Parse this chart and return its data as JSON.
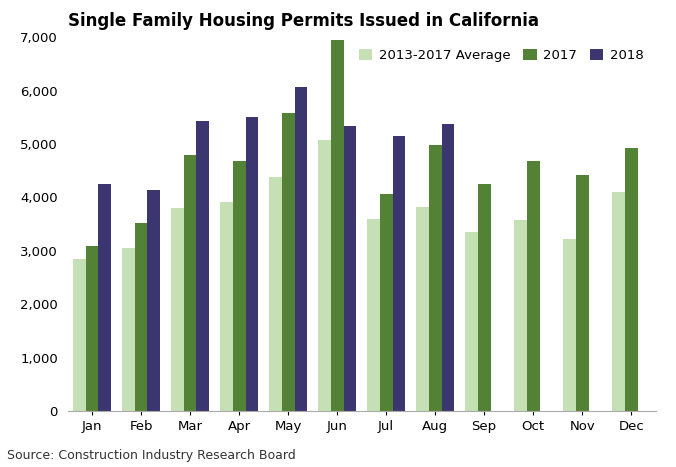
{
  "title": "Single Family Housing Permits Issued in California",
  "source": "Source: Construction Industry Research Board",
  "months": [
    "Jan",
    "Feb",
    "Mar",
    "Apr",
    "May",
    "Jun",
    "Jul",
    "Aug",
    "Sep",
    "Oct",
    "Nov",
    "Dec"
  ],
  "series": [
    {
      "label": "2013-2017 Average",
      "color": "#c5e0b4",
      "values": [
        2850,
        3050,
        3800,
        3920,
        4380,
        5070,
        3600,
        3820,
        3350,
        3580,
        3230,
        4100
      ]
    },
    {
      "label": "2017",
      "color": "#538135",
      "values": [
        3100,
        3520,
        4800,
        4680,
        5590,
        6950,
        4070,
        4990,
        4250,
        4680,
        4430,
        4920
      ]
    },
    {
      "label": "2018",
      "color": "#3b3570",
      "values": [
        4260,
        4140,
        5430,
        5510,
        6070,
        5330,
        5150,
        5370,
        null,
        null,
        null,
        null
      ]
    }
  ],
  "ylim": [
    0,
    7000
  ],
  "yticks": [
    0,
    1000,
    2000,
    3000,
    4000,
    5000,
    6000,
    7000
  ],
  "bar_width": 0.26,
  "background_color": "#ffffff",
  "title_fontsize": 12,
  "tick_fontsize": 9.5,
  "legend_fontsize": 9.5,
  "source_fontsize": 9
}
